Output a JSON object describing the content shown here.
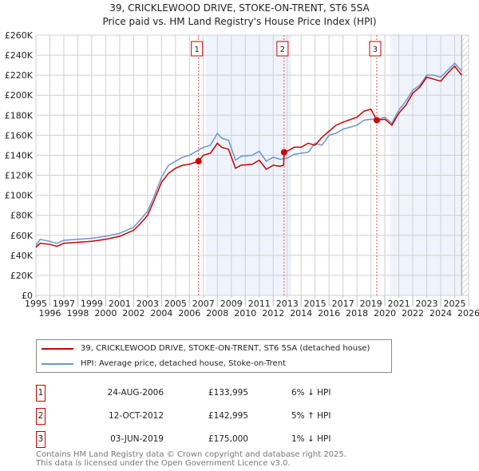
{
  "chart_data": {
    "type": "line",
    "title": "39, CRICKLEWOOD DRIVE, STOKE-ON-TRENT, ST6 5SA",
    "subtitle": "Price paid vs. HM Land Registry's House Price Index (HPI)",
    "xlim": [
      1995,
      2026
    ],
    "ylim": [
      0,
      260000
    ],
    "x_ticks": [
      "1995",
      "1996",
      "1997",
      "1998",
      "1999",
      "2000",
      "2001",
      "2002",
      "2003",
      "2004",
      "2005",
      "2006",
      "2007",
      "2008",
      "2009",
      "2010",
      "2011",
      "2012",
      "2013",
      "2014",
      "2015",
      "2016",
      "2017",
      "2018",
      "2019",
      "2020",
      "2021",
      "2022",
      "2023",
      "2024",
      "2025",
      "2026"
    ],
    "y_ticks": [
      {
        "v": 0,
        "l": "£0"
      },
      {
        "v": 20000,
        "l": "£20K"
      },
      {
        "v": 40000,
        "l": "£40K"
      },
      {
        "v": 60000,
        "l": "£60K"
      },
      {
        "v": 80000,
        "l": "£80K"
      },
      {
        "v": 100000,
        "l": "£100K"
      },
      {
        "v": 120000,
        "l": "£120K"
      },
      {
        "v": 140000,
        "l": "£140K"
      },
      {
        "v": 160000,
        "l": "£160K"
      },
      {
        "v": 180000,
        "l": "£180K"
      },
      {
        "v": 200000,
        "l": "£200K"
      },
      {
        "v": 220000,
        "l": "£220K"
      },
      {
        "v": 240000,
        "l": "£240K"
      },
      {
        "v": 260000,
        "l": "£260K"
      }
    ],
    "grid": true,
    "shaded_ranges": [
      [
        2007.2,
        2013.3
      ],
      [
        2020.4,
        2025.9
      ]
    ],
    "hatched_from": 2025.5,
    "series": [
      {
        "name": "39, CRICKLEWOOD DRIVE, STOKE-ON-TRENT, ST6 5SA (detached house)",
        "color": "#cc0000",
        "points": [
          [
            1995,
            48
          ],
          [
            1995.3,
            52
          ],
          [
            1996,
            51
          ],
          [
            1996.5,
            49
          ],
          [
            1997,
            52
          ],
          [
            1998,
            53
          ],
          [
            1999,
            54
          ],
          [
            2000,
            56
          ],
          [
            2001,
            59
          ],
          [
            2002,
            65
          ],
          [
            2002.5,
            72
          ],
          [
            2003,
            80
          ],
          [
            2003.5,
            96
          ],
          [
            2004,
            113
          ],
          [
            2004.5,
            122
          ],
          [
            2005,
            127
          ],
          [
            2005.5,
            130
          ],
          [
            2006,
            131
          ],
          [
            2006.65,
            134
          ],
          [
            2007,
            140
          ],
          [
            2007.5,
            142
          ],
          [
            2008,
            152
          ],
          [
            2008.3,
            148
          ],
          [
            2008.8,
            146
          ],
          [
            2009.3,
            127
          ],
          [
            2009.7,
            130
          ],
          [
            2010.5,
            131
          ],
          [
            2011,
            135
          ],
          [
            2011.5,
            126
          ],
          [
            2012,
            130
          ],
          [
            2012.5,
            129
          ],
          [
            2012.75,
            130
          ],
          [
            2012.78,
            143
          ],
          [
            2013,
            144
          ],
          [
            2013.5,
            148
          ],
          [
            2014,
            148
          ],
          [
            2014.5,
            152
          ],
          [
            2015,
            150
          ],
          [
            2015.5,
            158
          ],
          [
            2016,
            164
          ],
          [
            2016.5,
            170
          ],
          [
            2017,
            173
          ],
          [
            2018,
            178
          ],
          [
            2018.5,
            184
          ],
          [
            2019,
            186
          ],
          [
            2019.42,
            175
          ],
          [
            2020,
            176
          ],
          [
            2020.5,
            170
          ],
          [
            2021,
            182
          ],
          [
            2021.5,
            190
          ],
          [
            2022,
            202
          ],
          [
            2022.5,
            208
          ],
          [
            2023,
            218
          ],
          [
            2023.5,
            216
          ],
          [
            2024,
            214
          ],
          [
            2024.5,
            222
          ],
          [
            2025,
            229
          ],
          [
            2025.5,
            220
          ]
        ]
      },
      {
        "name": "HPI: Average price, detached house, Stoke-on-Trent",
        "color": "#6a96d0",
        "points": [
          [
            1995,
            50
          ],
          [
            1995.3,
            56
          ],
          [
            1996,
            54
          ],
          [
            1996.5,
            52
          ],
          [
            1997,
            55
          ],
          [
            1998,
            56
          ],
          [
            1999,
            57
          ],
          [
            2000,
            59
          ],
          [
            2001,
            62
          ],
          [
            2002,
            68
          ],
          [
            2002.5,
            76
          ],
          [
            2003,
            84
          ],
          [
            2003.5,
            100
          ],
          [
            2004,
            118
          ],
          [
            2004.5,
            130
          ],
          [
            2005,
            134
          ],
          [
            2005.5,
            138
          ],
          [
            2006,
            140
          ],
          [
            2006.5,
            144
          ],
          [
            2007,
            148
          ],
          [
            2007.5,
            150
          ],
          [
            2008,
            162
          ],
          [
            2008.3,
            157
          ],
          [
            2008.8,
            155
          ],
          [
            2009.3,
            135
          ],
          [
            2009.7,
            139
          ],
          [
            2010.5,
            140
          ],
          [
            2011,
            144
          ],
          [
            2011.5,
            134
          ],
          [
            2012,
            138
          ],
          [
            2012.5,
            136
          ],
          [
            2013,
            137
          ],
          [
            2013.5,
            141
          ],
          [
            2014,
            142
          ],
          [
            2014.5,
            143
          ],
          [
            2015,
            152
          ],
          [
            2015.5,
            150
          ],
          [
            2016,
            160
          ],
          [
            2016.5,
            162
          ],
          [
            2017,
            166
          ],
          [
            2018,
            170
          ],
          [
            2018.5,
            175
          ],
          [
            2019,
            176
          ],
          [
            2019.5,
            176
          ],
          [
            2020,
            178
          ],
          [
            2020.5,
            172
          ],
          [
            2021,
            185
          ],
          [
            2021.5,
            194
          ],
          [
            2022,
            205
          ],
          [
            2022.5,
            210
          ],
          [
            2023,
            220
          ],
          [
            2023.5,
            220
          ],
          [
            2024,
            218
          ],
          [
            2024.5,
            225
          ],
          [
            2025,
            232
          ],
          [
            2025.5,
            224
          ]
        ]
      }
    ],
    "sales": [
      {
        "num": "1",
        "x": 2006.65,
        "price": 133995,
        "date": "24-AUG-2006",
        "price_label": "£133,995",
        "hpi": "6% ↓ HPI"
      },
      {
        "num": "2",
        "x": 2012.78,
        "price": 142995,
        "date": "12-OCT-2012",
        "price_label": "£142,995",
        "hpi": "5% ↑ HPI"
      },
      {
        "num": "3",
        "x": 2019.42,
        "price": 175000,
        "date": "03-JUN-2019",
        "price_label": "£175,000",
        "hpi": "1% ↓ HPI"
      }
    ]
  },
  "legend": {
    "red": "39, CRICKLEWOOD DRIVE, STOKE-ON-TRENT, ST6 5SA (detached house)",
    "blue": "HPI: Average price, detached house, Stoke-on-Trent"
  },
  "footer": {
    "line1": "Contains HM Land Registry data © Crown copyright and database right 2025.",
    "line2": "This data is licensed under the Open Government Licence v3.0."
  }
}
